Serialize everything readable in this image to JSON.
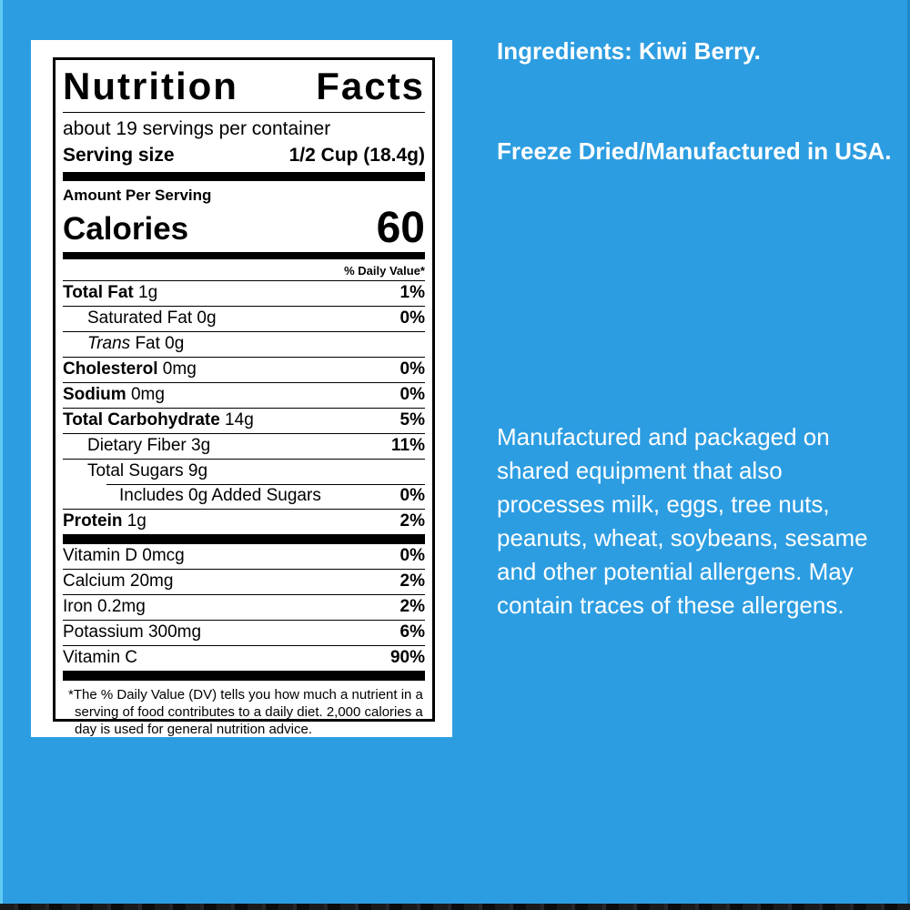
{
  "colors": {
    "background_blue": "#2D9DE1",
    "edge_light_blue": "#5FCBF3",
    "edge_dark_blue": "#2187C8",
    "label_ink": "#000000",
    "panel_white": "#FFFFFF",
    "right_text_white": "#FFFFFF",
    "bottom_strip": "#121214"
  },
  "label": {
    "title": "Nutrition Facts",
    "servings": "about 19 servings per container",
    "serving_size_label": "Serving size",
    "serving_size_value": "1/2 Cup (18.4g)",
    "amount_per_serving": "Amount Per Serving",
    "calories_label": "Calories",
    "calories_value": "60",
    "daily_value_header": "% Daily Value*",
    "rows": [
      {
        "parts": [
          {
            "text": "Total Fat",
            "bold": true
          },
          {
            "text": " 1g"
          }
        ],
        "pct": "1%",
        "indent": 0
      },
      {
        "parts": [
          {
            "text": "Saturated Fat 0g"
          }
        ],
        "pct": "0%",
        "indent": 1
      },
      {
        "parts": [
          {
            "text": "Trans",
            "italic": true
          },
          {
            "text": " Fat 0g"
          }
        ],
        "pct": "",
        "indent": 1
      },
      {
        "parts": [
          {
            "text": "Cholesterol",
            "bold": true
          },
          {
            "text": " 0mg"
          }
        ],
        "pct": "0%",
        "indent": 0
      },
      {
        "parts": [
          {
            "text": "Sodium",
            "bold": true
          },
          {
            "text": " 0mg"
          }
        ],
        "pct": "0%",
        "indent": 0
      },
      {
        "parts": [
          {
            "text": "Total Carbohydrate",
            "bold": true
          },
          {
            "text": " 14g"
          }
        ],
        "pct": "5%",
        "indent": 0
      },
      {
        "parts": [
          {
            "text": "Dietary Fiber 3g"
          }
        ],
        "pct": "11%",
        "indent": 1
      },
      {
        "parts": [
          {
            "text": "Total Sugars 9g"
          }
        ],
        "pct": "",
        "indent": 1
      },
      {
        "parts": [
          {
            "text": "Includes 0g Added Sugars"
          }
        ],
        "pct": "0%",
        "indent": 2,
        "partial_rule": true
      },
      {
        "parts": [
          {
            "text": "Protein",
            "bold": true
          },
          {
            "text": " 1g"
          }
        ],
        "pct": "2%",
        "indent": 0
      }
    ],
    "vitamins": [
      {
        "parts": [
          {
            "text": "Vitamin D 0mcg"
          }
        ],
        "pct": "0%"
      },
      {
        "parts": [
          {
            "text": "Calcium 20mg"
          }
        ],
        "pct": "2%"
      },
      {
        "parts": [
          {
            "text": "Iron 0.2mg"
          }
        ],
        "pct": "2%"
      },
      {
        "parts": [
          {
            "text": "Potassium 300mg"
          }
        ],
        "pct": "6%"
      },
      {
        "parts": [
          {
            "text": "Vitamin C"
          }
        ],
        "pct": "90%"
      }
    ],
    "footnote": "*The % Daily Value (DV) tells you how much a nutrient in a serving of food contributes to a daily diet. 2,000 calories a day is used for general nutrition advice."
  },
  "right_panel": {
    "ingredients": "Ingredients: Kiwi Berry.",
    "origin": "Freeze Dried/Manufactured in USA.",
    "allergen": "Manufactured and packaged on shared equipment that also processes milk, eggs, tree nuts, peanuts, wheat, soybeans, sesame and other potential allergens. May contain traces of these allergens."
  }
}
